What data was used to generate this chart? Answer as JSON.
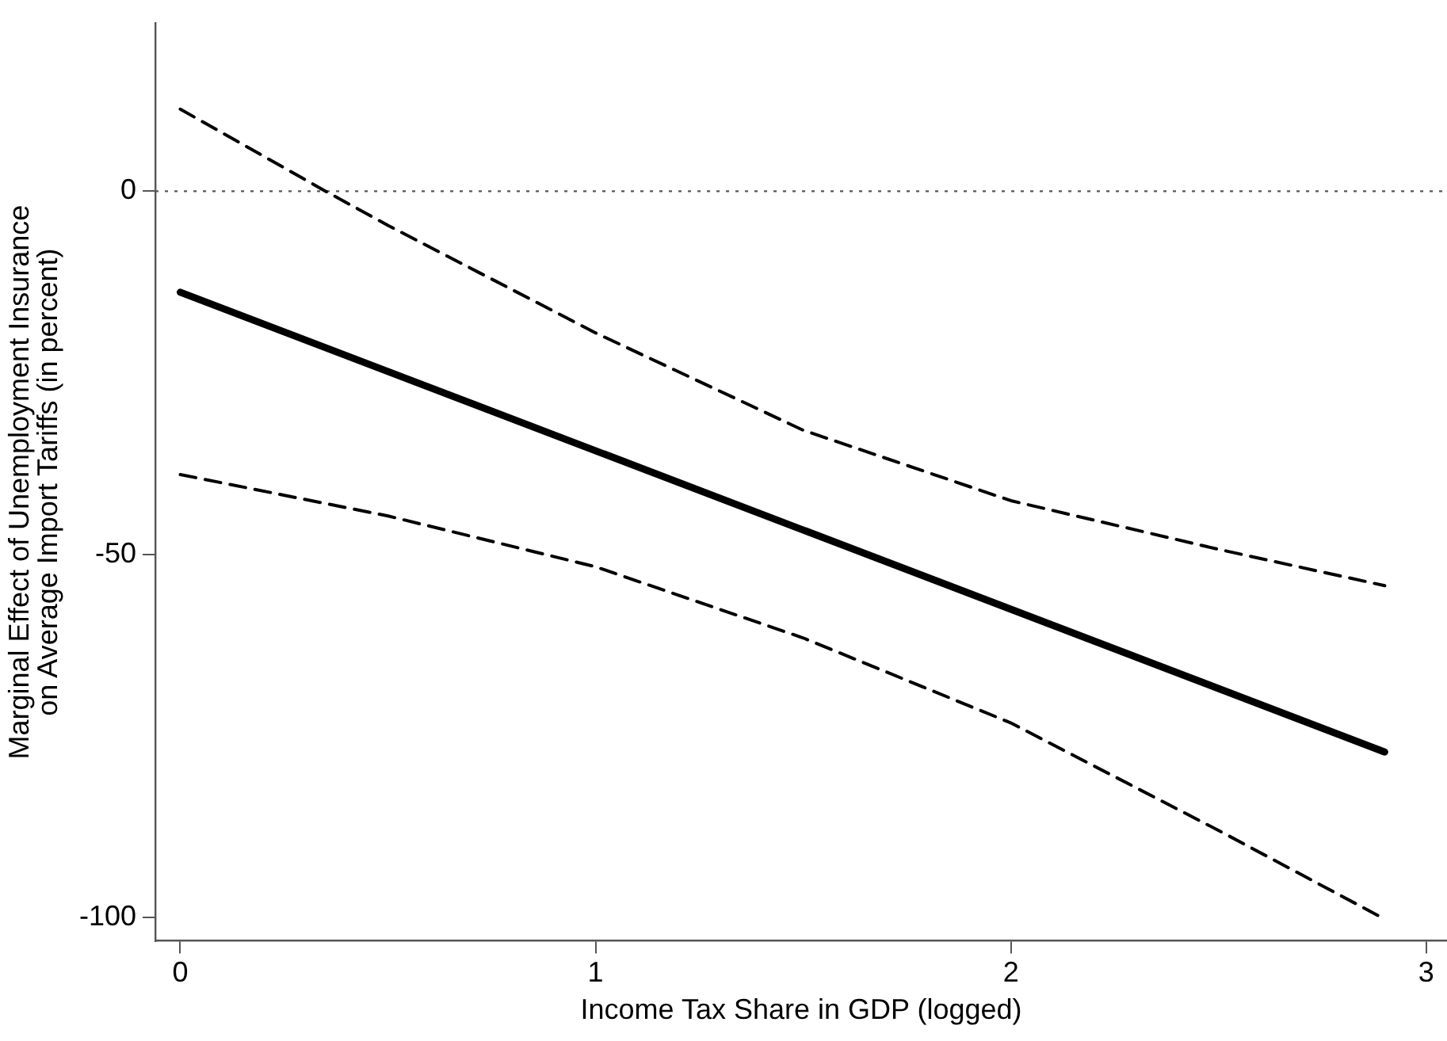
{
  "chart_data": {
    "type": "line",
    "xlabel": "Income Tax Share in GDP (logged)",
    "ylabel": "Marginal Effect of Unemployment Insurance\non Average Import Tariffs (in percent)",
    "xlim": [
      -0.06,
      3.05
    ],
    "ylim": [
      -103.2,
      23.1
    ],
    "xticks": [
      0,
      1,
      2,
      3
    ],
    "yticks": [
      -100,
      -50,
      0
    ],
    "series": [
      {
        "color": "#000000",
        "line_style": "solid",
        "x": [
          0,
          2.9
        ],
        "values": [
          -13.9,
          -77.2
        ]
      },
      {
        "color": "#000000",
        "line_style": "dashed",
        "x": [
          0,
          0.35,
          0.5,
          1,
          1.5,
          2,
          2.5,
          2.9
        ],
        "values": [
          11.3,
          0,
          -4.7,
          -19.5,
          -32.9,
          -42.6,
          -49.3,
          -54.3
        ]
      },
      {
        "color": "#000000",
        "line_style": "dashed",
        "x": [
          0,
          0.5,
          1,
          1.5,
          2,
          2.5,
          2.9
        ],
        "values": [
          -39,
          -44.7,
          -51.7,
          -61.5,
          -73.2,
          -88,
          -100.2
        ]
      }
    ],
    "ref_lines": [
      {
        "axis": "y",
        "value": 0,
        "line_style": "dotted",
        "color": "#555555"
      }
    ],
    "grid": false,
    "legend": false,
    "marker": "none"
  }
}
